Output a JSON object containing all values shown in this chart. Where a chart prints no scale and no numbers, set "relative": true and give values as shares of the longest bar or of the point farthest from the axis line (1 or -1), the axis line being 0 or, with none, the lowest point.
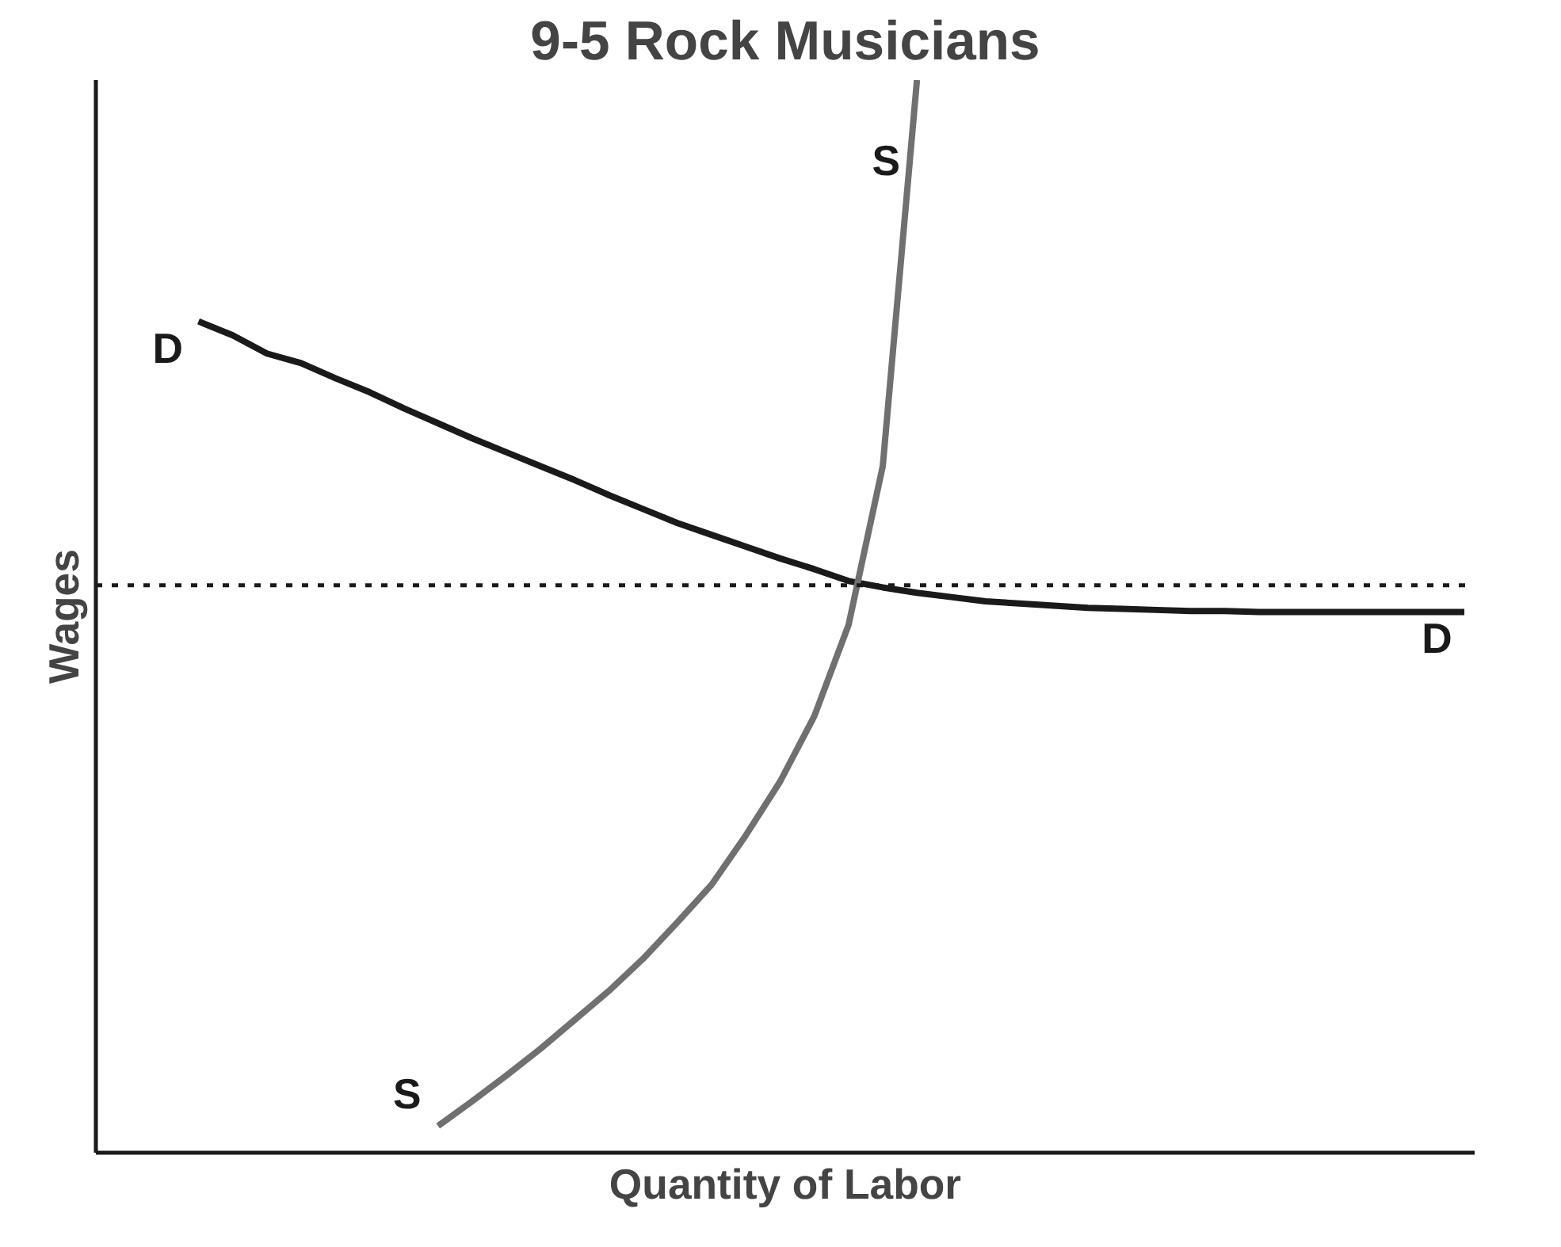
{
  "chart_data": {
    "type": "line",
    "title": "9-5 Rock Musicians",
    "xlabel": "Quantity of Labor",
    "ylabel": "Wages",
    "relative": true,
    "legend": false,
    "marker": "none",
    "line_style": "solid",
    "categories": [
      null,
      null,
      null,
      null,
      null,
      null,
      null,
      null,
      null,
      null,
      null,
      null,
      null,
      null,
      null,
      null,
      null,
      null,
      null,
      null,
      null,
      null,
      null,
      null,
      null,
      null,
      null,
      null,
      null,
      null,
      null,
      null,
      null,
      null,
      null,
      null,
      null,
      null,
      null,
      null,
      null
    ],
    "series": [
      {
        "name": "D",
        "color": "#1a1a1a",
        "values": [
          null,
          null,
          null,
          0.775,
          0.762,
          0.745,
          0.736,
          0.722,
          0.709,
          0.694,
          0.68,
          0.666,
          0.653,
          0.64,
          0.627,
          0.613,
          0.6,
          0.587,
          0.576,
          0.565,
          0.554,
          0.544,
          0.533,
          0.527,
          0.522,
          0.518,
          0.514,
          0.512,
          0.51,
          0.508,
          0.507,
          0.506,
          0.505,
          0.505,
          0.504,
          0.504,
          0.504,
          0.504,
          0.504,
          0.504,
          0.504
        ]
      },
      {
        "name": "S",
        "color": "#707070",
        "values": [
          null,
          null,
          null,
          null,
          null,
          null,
          null,
          null,
          null,
          null,
          0.025,
          0.048,
          0.072,
          0.097,
          0.124,
          0.151,
          0.181,
          0.215,
          0.25,
          0.296,
          0.346,
          0.407,
          0.492,
          0.64,
          1.0,
          null,
          null,
          null,
          null,
          null,
          null,
          null,
          null,
          null,
          null,
          null,
          null,
          null,
          null,
          null,
          null
        ]
      }
    ],
    "ref_lines": [
      {
        "axis": "y",
        "value": 0.529,
        "line_style": "dotted",
        "color": "#1a1a1a"
      }
    ]
  }
}
